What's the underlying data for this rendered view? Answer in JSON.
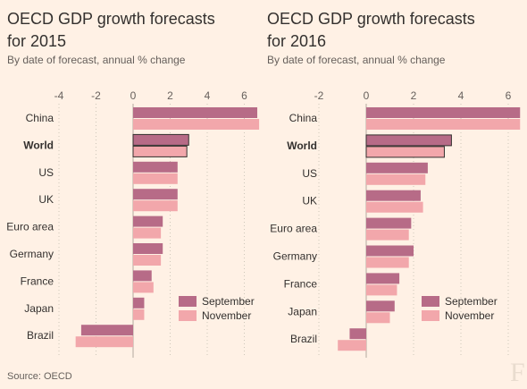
{
  "source": "Source: OECD",
  "logo_text": "F",
  "chart_data": [
    {
      "type": "bar",
      "title_line1": "OECD GDP growth forecasts",
      "title_line2": "for 2015",
      "subtitle": "By date of forecast, annual % change",
      "categories": [
        "China",
        "World",
        "US",
        "UK",
        "Euro area",
        "Germany",
        "France",
        "Japan",
        "Brazil"
      ],
      "highlight": "World",
      "series": [
        {
          "name": "September",
          "color": "#b76b87",
          "values": [
            6.7,
            3.0,
            2.4,
            2.4,
            1.6,
            1.6,
            1.0,
            0.6,
            -2.8
          ]
        },
        {
          "name": "November",
          "color": "#f2a7ab",
          "values": [
            6.8,
            2.9,
            2.4,
            2.4,
            1.5,
            1.5,
            1.1,
            0.6,
            -3.1
          ]
        }
      ],
      "xlim": [
        -4,
        7
      ],
      "xticks": [
        -4,
        -2,
        0,
        2,
        4,
        6
      ],
      "legend_position": "bottom-right"
    },
    {
      "type": "bar",
      "title_line1": "OECD GDP growth forecasts",
      "title_line2": "for 2016",
      "subtitle": "By date of forecast, annual % change",
      "categories": [
        "China",
        "World",
        "US",
        "UK",
        "Euro area",
        "Germany",
        "France",
        "Japan",
        "Brazil"
      ],
      "highlight": "World",
      "series": [
        {
          "name": "September",
          "color": "#b76b87",
          "values": [
            6.5,
            3.6,
            2.6,
            2.3,
            1.9,
            2.0,
            1.4,
            1.2,
            -0.7
          ]
        },
        {
          "name": "November",
          "color": "#f2a7ab",
          "values": [
            6.5,
            3.3,
            2.5,
            2.4,
            1.8,
            1.8,
            1.3,
            1.0,
            -1.2
          ]
        }
      ],
      "xlim": [
        -2,
        6.5
      ],
      "xticks": [
        -2,
        0,
        2,
        4,
        6
      ],
      "legend_position": "bottom-right"
    }
  ]
}
